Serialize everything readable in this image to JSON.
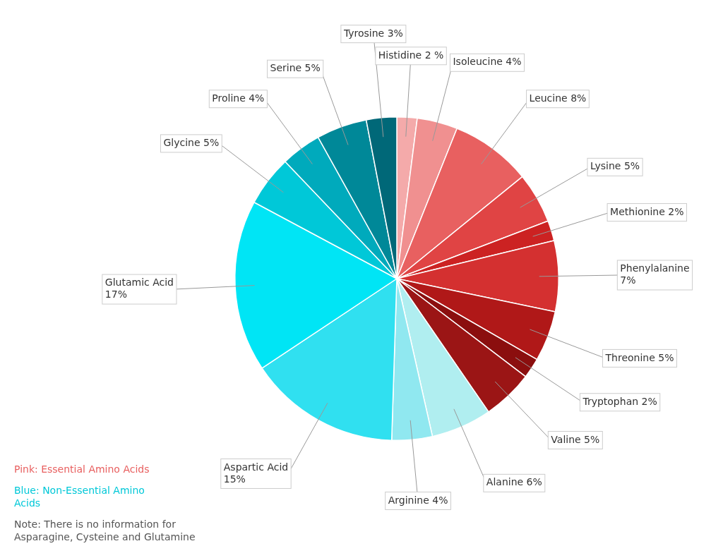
{
  "chart_data": {
    "type": "pie",
    "categories": [
      "Histidine 2 %",
      "Isoleucine 4%",
      "Leucine 8%",
      "Lysine 5%",
      "Methionine 2%",
      "Phenylalanine\n7%",
      "Threonine 5%",
      "Tryptophan 2%",
      "Valine 5%",
      "Alanine 6%",
      "Arginine 4%",
      "Aspartic Acid\n15%",
      "Glutamic Acid\n17%",
      "Glycine 5%",
      "Proline 4%",
      "Serine 5%",
      "Tyrosine 3%"
    ],
    "values": [
      2,
      4,
      8,
      5,
      2,
      7,
      5,
      2,
      5,
      6,
      4,
      15,
      17,
      5,
      4,
      5,
      3
    ],
    "colors": [
      "#F4AAAA",
      "#F09090",
      "#E86060",
      "#E04444",
      "#CC2222",
      "#D43030",
      "#B01818",
      "#8B0E0E",
      "#9B1515",
      "#B0EEF0",
      "#90E8F0",
      "#30E0F0",
      "#00E5F5",
      "#00C8D8",
      "#00AABC",
      "#008898",
      "#006878"
    ],
    "annotations": [
      {
        "text": "Pink: Essential Amino Acids",
        "color": "#E86060"
      },
      {
        "text": "Blue: Non-Essential Amino\nAcids",
        "color": "#00C8D8"
      },
      {
        "text": "Note: There is no information for\nAsparagine, Cysteine and Glutamine",
        "color": "#555555"
      }
    ]
  }
}
